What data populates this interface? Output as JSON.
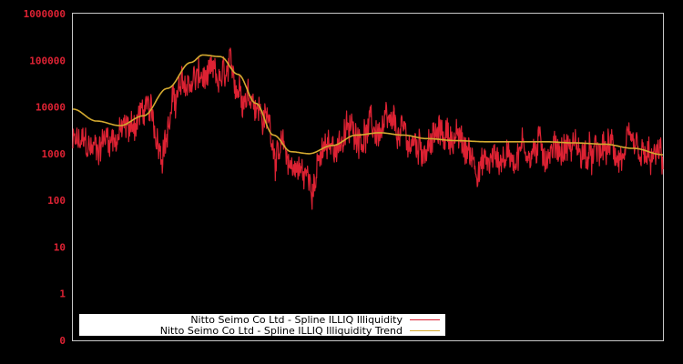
{
  "chart_data": {
    "type": "line",
    "title": "",
    "xlabel": "",
    "ylabel": "",
    "yscale": "log",
    "y_tick_labels": [
      "1000000",
      "100000",
      "10000",
      "1000",
      "100",
      "10",
      "1",
      "0"
    ],
    "ylim": [
      0,
      1000000
    ],
    "grid": false,
    "legend_position": "lower left",
    "background": "#000000",
    "axis_color": "#c8c8c8",
    "tick_label_color": "#dd2233",
    "series": [
      {
        "name": "Nitto Seimo Co Ltd - Spline ILLIQ Illiquidity",
        "color": "#dd2233",
        "style": "noisy",
        "anchors_x_frac": [
          0.0,
          0.03,
          0.06,
          0.09,
          0.12,
          0.15,
          0.18,
          0.21,
          0.24,
          0.27,
          0.3,
          0.33,
          0.35,
          0.37,
          0.4,
          0.43,
          0.46,
          0.49,
          0.52,
          0.55,
          0.58,
          0.61,
          0.64,
          0.67,
          0.7,
          0.73,
          0.76,
          0.79,
          0.82,
          0.85,
          0.88,
          0.91,
          0.94,
          0.97,
          1.0
        ],
        "anchors_value": [
          1500,
          1200,
          2500,
          3000,
          8000,
          2000,
          20000,
          40000,
          30000,
          35000,
          25000,
          5000,
          900,
          600,
          300,
          1000,
          2500,
          3500,
          3000,
          2200,
          1500,
          2000,
          2800,
          1000,
          600,
          900,
          1400,
          1200,
          1500,
          1400,
          700,
          1200,
          800,
          600,
          700
        ]
      },
      {
        "name": "Nitto Seimo Co Ltd - Spline ILLIQ Illiquidity Trend",
        "color": "#d4aa30",
        "style": "smooth",
        "anchors_x_frac": [
          0.0,
          0.04,
          0.08,
          0.12,
          0.16,
          0.2,
          0.22,
          0.25,
          0.28,
          0.31,
          0.34,
          0.37,
          0.4,
          0.44,
          0.48,
          0.52,
          0.56,
          0.6,
          0.65,
          0.7,
          0.75,
          0.8,
          0.85,
          0.9,
          0.95,
          1.0
        ],
        "anchors_value": [
          9000,
          5000,
          4000,
          6500,
          25000,
          90000,
          130000,
          120000,
          50000,
          12000,
          2500,
          1100,
          1000,
          1500,
          2500,
          2800,
          2500,
          2100,
          1900,
          1800,
          1800,
          1800,
          1700,
          1600,
          1300,
          950
        ]
      }
    ]
  },
  "legend": {
    "items": [
      {
        "label": "Nitto Seimo Co Ltd - Spline ILLIQ Illiquidity",
        "color": "#dd2233"
      },
      {
        "label": "Nitto Seimo Co Ltd - Spline ILLIQ Illiquidity Trend",
        "color": "#d4aa30"
      }
    ]
  }
}
